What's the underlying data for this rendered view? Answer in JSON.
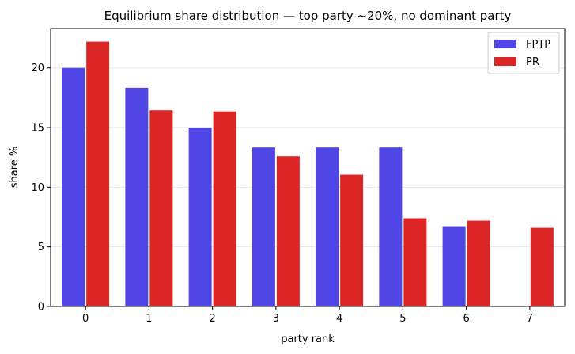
{
  "chart_data": {
    "type": "bar",
    "title": "Equilibrium share distribution — top party ~20%, no dominant party",
    "xlabel": "party rank",
    "ylabel": "share %",
    "categories": [
      "0",
      "1",
      "2",
      "3",
      "4",
      "5",
      "6",
      "7"
    ],
    "ylim": [
      0,
      23.3
    ],
    "yticks": [
      0,
      5,
      10,
      15,
      20
    ],
    "grid": "horizontal",
    "legend_position": "top-right",
    "series": [
      {
        "name": "FPTP",
        "color": "#4f46e5",
        "values": [
          20.0,
          18.33,
          15.0,
          13.33,
          13.33,
          13.33,
          6.67,
          null
        ]
      },
      {
        "name": "PR",
        "color": "#dc2626",
        "values": [
          22.2,
          16.45,
          16.35,
          12.6,
          11.05,
          7.4,
          7.2,
          6.6
        ]
      }
    ]
  }
}
